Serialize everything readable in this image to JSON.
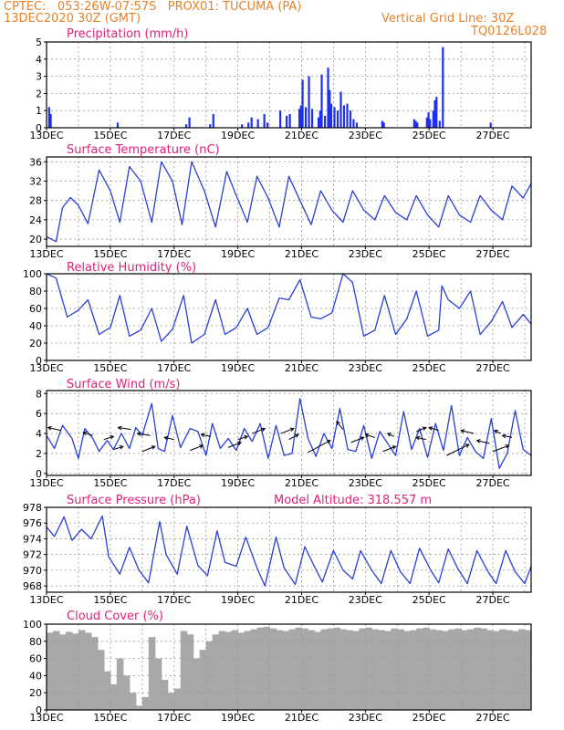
{
  "header": {
    "line1": "CPTEC:   053:26W-07:57S   PROX01: TUCUMA (PA)",
    "line2": "13DEC2020 30Z (GMT)",
    "grid_note": "Vertical Grid Line: 30Z",
    "code": "TQ0126L028"
  },
  "colors": {
    "line": "#2a3fd6",
    "bar": "#1f2ff0",
    "title": "#e0207a",
    "header": "#e8822a",
    "cloud": "#a8a8a8",
    "grid": "#999999"
  },
  "chart_data": [
    {
      "type": "bar",
      "title": "Precipitation (mm/h)",
      "x_ticks": [
        "13DEC",
        "15DEC",
        "17DEC",
        "19DEC",
        "21DEC",
        "23DEC",
        "25DEC",
        "27DEC"
      ],
      "xlim": [
        0,
        15.2
      ],
      "ylim": [
        0,
        5
      ],
      "y_ticks": [
        0,
        1,
        2,
        3,
        4,
        5
      ],
      "grid": true,
      "x": [
        0.05,
        0.1,
        2.2,
        4.35,
        4.45,
        5.1,
        5.2,
        6.1,
        6.3,
        6.4,
        6.6,
        6.8,
        6.9,
        7.3,
        7.5,
        7.6,
        7.9,
        7.95,
        8.0,
        8.1,
        8.2,
        8.3,
        8.5,
        8.55,
        8.6,
        8.7,
        8.8,
        8.85,
        8.9,
        9.0,
        9.1,
        9.2,
        9.3,
        9.4,
        9.5,
        9.6,
        9.7,
        10.5,
        10.55,
        11.5,
        11.55,
        11.6,
        11.9,
        11.95,
        12.0,
        12.1,
        12.15,
        12.2,
        12.3,
        12.4,
        13.9
      ],
      "values": [
        1.2,
        0.8,
        0.3,
        0.2,
        0.6,
        0.2,
        0.8,
        0.2,
        0.3,
        0.6,
        0.5,
        0.8,
        0.3,
        1.0,
        0.7,
        0.8,
        1.1,
        1.3,
        2.8,
        1.2,
        3.0,
        1.1,
        0.6,
        1.0,
        3.1,
        0.7,
        3.5,
        2.2,
        1.4,
        1.2,
        1.0,
        2.1,
        1.3,
        1.4,
        1.0,
        0.5,
        0.3,
        0.4,
        0.3,
        0.5,
        0.4,
        0.3,
        0.6,
        0.9,
        0.5,
        1.0,
        1.6,
        1.8,
        0.4,
        4.7,
        0.3
      ]
    },
    {
      "type": "line",
      "title": "Surface Temperature (nC)",
      "x_ticks": [
        "13DEC",
        "15DEC",
        "17DEC",
        "19DEC",
        "21DEC",
        "23DEC",
        "25DEC",
        "27DEC"
      ],
      "xlim": [
        0,
        15.2
      ],
      "ylim": [
        18.5,
        37
      ],
      "y_ticks": [
        20,
        24,
        28,
        32,
        36
      ],
      "grid": true,
      "x": [
        0,
        0.3,
        0.5,
        0.75,
        1.0,
        1.3,
        1.65,
        2.0,
        2.3,
        2.6,
        2.95,
        3.3,
        3.6,
        3.95,
        4.25,
        4.55,
        4.95,
        5.3,
        5.65,
        5.95,
        6.3,
        6.6,
        6.95,
        7.3,
        7.6,
        7.95,
        8.3,
        8.6,
        8.95,
        9.3,
        9.6,
        9.95,
        10.3,
        10.6,
        10.95,
        11.3,
        11.6,
        11.95,
        12.3,
        12.6,
        12.95,
        13.3,
        13.6,
        13.95,
        14.3,
        14.6,
        14.95,
        15.2
      ],
      "values": [
        20.5,
        19.5,
        26.5,
        28.6,
        27,
        23.2,
        34.3,
        30,
        23.5,
        35,
        32,
        23.5,
        36,
        32,
        23,
        36,
        30,
        22.5,
        34,
        29,
        23.5,
        33,
        28.5,
        22.5,
        33,
        28,
        23,
        30,
        26,
        23.5,
        30,
        26,
        24,
        29,
        25.5,
        24,
        29,
        25,
        22.5,
        29,
        25,
        23.5,
        29,
        26,
        24,
        31,
        28.5,
        31.5
      ]
    },
    {
      "type": "line",
      "title": "Relative Humidity (%)",
      "x_ticks": [
        "13DEC",
        "15DEC",
        "17DEC",
        "19DEC",
        "21DEC",
        "23DEC",
        "25DEC",
        "27DEC"
      ],
      "xlim": [
        0,
        15.2
      ],
      "ylim": [
        0,
        100
      ],
      "y_ticks": [
        0,
        20,
        40,
        60,
        80,
        100
      ],
      "grid": true,
      "x": [
        0,
        0.3,
        0.65,
        1.0,
        1.3,
        1.65,
        2.0,
        2.3,
        2.6,
        2.95,
        3.3,
        3.6,
        3.95,
        4.3,
        4.55,
        4.95,
        5.3,
        5.6,
        5.95,
        6.3,
        6.6,
        6.95,
        7.3,
        7.6,
        7.95,
        8.3,
        8.6,
        8.95,
        9.3,
        9.6,
        9.95,
        10.3,
        10.6,
        10.95,
        11.3,
        11.6,
        11.95,
        12.3,
        12.4,
        12.6,
        12.95,
        13.3,
        13.6,
        13.95,
        14.3,
        14.6,
        14.95,
        15.2
      ],
      "values": [
        100,
        95,
        50,
        58,
        70,
        30,
        38,
        75,
        28,
        35,
        60,
        22,
        36,
        75,
        20,
        30,
        70,
        30,
        38,
        60,
        30,
        38,
        72,
        70,
        93,
        50,
        48,
        55,
        100,
        90,
        28,
        35,
        75,
        30,
        48,
        80,
        28,
        35,
        86,
        70,
        60,
        80,
        30,
        45,
        68,
        38,
        53,
        42
      ]
    },
    {
      "type": "line",
      "title": "Surface Wind (m/s)",
      "x_ticks": [
        "13DEC",
        "15DEC",
        "17DEC",
        "19DEC",
        "21DEC",
        "23DEC",
        "25DEC",
        "27DEC"
      ],
      "xlim": [
        0,
        15.2
      ],
      "ylim": [
        -0.2,
        8.3
      ],
      "y_ticks": [
        0,
        2,
        4,
        6,
        8
      ],
      "grid": true,
      "x": [
        0,
        0.25,
        0.5,
        0.8,
        1.0,
        1.2,
        1.45,
        1.65,
        1.9,
        2.1,
        2.35,
        2.6,
        2.8,
        3.0,
        3.3,
        3.5,
        3.7,
        3.95,
        4.2,
        4.5,
        4.75,
        5.0,
        5.2,
        5.45,
        5.7,
        5.95,
        6.2,
        6.45,
        6.7,
        6.95,
        7.2,
        7.45,
        7.7,
        7.95,
        8.2,
        8.45,
        8.7,
        8.95,
        9.2,
        9.45,
        9.7,
        9.95,
        10.2,
        10.45,
        10.7,
        10.95,
        11.2,
        11.45,
        11.7,
        11.95,
        12.2,
        12.45,
        12.7,
        12.95,
        13.2,
        13.45,
        13.7,
        13.95,
        14.2,
        14.45,
        14.7,
        14.95,
        15.2
      ],
      "values": [
        3.8,
        2.5,
        4.8,
        3.5,
        1.5,
        4.5,
        3.5,
        2.2,
        3.3,
        2.4,
        4.0,
        2.5,
        4.6,
        3.8,
        7.0,
        2.5,
        2.2,
        5.8,
        2.6,
        4.5,
        4.2,
        1.8,
        5.0,
        2.5,
        3.5,
        2.3,
        4.5,
        3.2,
        5.0,
        1.5,
        4.8,
        1.8,
        2.0,
        7.5,
        3.5,
        1.7,
        4.0,
        2.5,
        6.5,
        2.4,
        2.2,
        4.8,
        1.5,
        4.2,
        3.0,
        1.8,
        6.2,
        2.4,
        4.5,
        1.6,
        5.0,
        2.3,
        6.8,
        1.8,
        3.6,
        2.2,
        1.5,
        5.5,
        0.5,
        2.0,
        6.3,
        2.4,
        1.8
      ],
      "arrows": [
        [
          0.45,
          4.3,
          -0.4,
          0.3
        ],
        [
          1.45,
          3.8,
          -0.3,
          0.3
        ],
        [
          1.8,
          3.4,
          0.3,
          0.3
        ],
        [
          2.1,
          2.4,
          0.3,
          0.3
        ],
        [
          2.65,
          4.4,
          -0.4,
          0.2
        ],
        [
          3.0,
          2.2,
          0.4,
          0.5
        ],
        [
          3.25,
          3.8,
          -0.4,
          0.2
        ],
        [
          4.0,
          3.4,
          -0.3,
          0.2
        ],
        [
          4.5,
          2.3,
          0.4,
          0.5
        ],
        [
          5.15,
          3.7,
          -0.3,
          0.2
        ],
        [
          5.7,
          2.6,
          0.4,
          0.5
        ],
        [
          6.0,
          3.4,
          0.3,
          0.3
        ],
        [
          6.45,
          4.0,
          0.4,
          0.5
        ],
        [
          7.35,
          4.0,
          0.4,
          0.5
        ],
        [
          7.6,
          3.4,
          0.3,
          0.5
        ],
        [
          8.2,
          2.1,
          0.7,
          1.2
        ],
        [
          9.3,
          4.4,
          -0.2,
          0.8
        ],
        [
          9.55,
          3.1,
          0.4,
          0.5
        ],
        [
          10.3,
          3.6,
          -0.3,
          0.3
        ],
        [
          10.55,
          2.2,
          0.4,
          0.5
        ],
        [
          10.9,
          3.7,
          -0.2,
          0.3
        ],
        [
          11.6,
          4.2,
          0.3,
          0.4
        ],
        [
          11.9,
          3.4,
          -0.3,
          0.2
        ],
        [
          12.3,
          4.3,
          -0.3,
          0.3
        ],
        [
          12.55,
          1.8,
          0.7,
          1.1
        ],
        [
          13.4,
          4.0,
          -0.4,
          0.3
        ],
        [
          13.9,
          3.0,
          -0.4,
          0.3
        ],
        [
          14.0,
          2.2,
          0.5,
          0.6
        ],
        [
          14.25,
          4.0,
          -0.2,
          0.3
        ],
        [
          14.6,
          3.6,
          -0.3,
          0.2
        ]
      ]
    },
    {
      "type": "line",
      "title": "Surface Pressure (hPa)",
      "annotation": "Model Altitude: 318.557  m",
      "x_ticks": [
        "13DEC",
        "15DEC",
        "17DEC",
        "19DEC",
        "21DEC",
        "23DEC",
        "25DEC",
        "27DEC"
      ],
      "xlim": [
        0,
        15.2
      ],
      "ylim": [
        967.2,
        978
      ],
      "y_ticks": [
        968,
        970,
        972,
        974,
        976,
        978
      ],
      "grid": true,
      "x": [
        0,
        0.25,
        0.55,
        0.8,
        1.1,
        1.4,
        1.75,
        1.95,
        2.3,
        2.6,
        2.9,
        3.2,
        3.55,
        3.75,
        4.1,
        4.4,
        4.75,
        5.05,
        5.35,
        5.6,
        5.95,
        6.25,
        6.6,
        6.85,
        7.2,
        7.45,
        7.8,
        8.1,
        8.4,
        8.65,
        9.0,
        9.3,
        9.6,
        9.85,
        10.2,
        10.5,
        10.8,
        11.1,
        11.4,
        11.7,
        12.05,
        12.3,
        12.6,
        12.9,
        13.2,
        13.5,
        13.85,
        14.1,
        14.4,
        14.7,
        15.0,
        15.2
      ],
      "values": [
        975.5,
        974.3,
        976.8,
        973.8,
        975.2,
        974,
        976.9,
        971.7,
        969.5,
        972.9,
        970.0,
        968.4,
        976.2,
        972,
        969.5,
        975.6,
        970.6,
        969.3,
        975,
        971,
        970.5,
        974.2,
        970.3,
        968,
        974.2,
        970.3,
        968.2,
        973,
        970.5,
        968.5,
        972.5,
        970,
        968.9,
        972.5,
        970,
        968.3,
        972.5,
        969.8,
        968.3,
        972.8,
        970,
        968.4,
        972.7,
        970.2,
        968.3,
        972.5,
        969.8,
        968.3,
        972.5,
        969.8,
        968.3,
        970.5
      ]
    },
    {
      "type": "bar",
      "title": "Cloud Cover (%)",
      "x_ticks": [
        "13DEC",
        "15DEC",
        "17DEC",
        "19DEC",
        "21DEC",
        "23DEC",
        "25DEC",
        "27DEC"
      ],
      "xlim": [
        0,
        15.2
      ],
      "ylim": [
        0,
        100
      ],
      "y_ticks": [
        0,
        20,
        40,
        60,
        80,
        100
      ],
      "grid": true,
      "x": [
        0,
        0.2,
        0.4,
        0.6,
        0.8,
        1.0,
        1.2,
        1.4,
        1.6,
        1.8,
        2.0,
        2.2,
        2.4,
        2.6,
        2.8,
        3.0,
        3.2,
        3.4,
        3.6,
        3.8,
        4.0,
        4.2,
        4.4,
        4.6,
        4.8,
        5.0,
        5.2,
        5.4,
        5.6,
        5.8,
        6.0,
        6.2,
        6.4,
        6.6,
        6.8,
        7.0,
        7.2,
        7.4,
        7.6,
        7.8,
        8.0,
        8.2,
        8.4,
        8.6,
        8.8,
        9.0,
        9.2,
        9.4,
        9.6,
        9.8,
        10.0,
        10.2,
        10.4,
        10.6,
        10.8,
        11.0,
        11.2,
        11.4,
        11.6,
        11.8,
        12.0,
        12.2,
        12.4,
        12.6,
        12.8,
        13.0,
        13.2,
        13.4,
        13.6,
        13.8,
        14.0,
        14.2,
        14.4,
        14.6,
        14.8,
        15.0
      ],
      "values": [
        90,
        92,
        88,
        91,
        89,
        93,
        90,
        85,
        70,
        45,
        30,
        60,
        40,
        20,
        5,
        15,
        85,
        60,
        35,
        20,
        25,
        92,
        88,
        60,
        70,
        80,
        88,
        92,
        91,
        93,
        90,
        92,
        94,
        96,
        97,
        95,
        93,
        92,
        94,
        96,
        95,
        93,
        91,
        94,
        95,
        96,
        94,
        93,
        92,
        95,
        96,
        94,
        93,
        92,
        95,
        94,
        92,
        93,
        95,
        96,
        94,
        93,
        92,
        94,
        95,
        93,
        94,
        96,
        95,
        93,
        92,
        94,
        93,
        92,
        94,
        93
      ]
    }
  ]
}
